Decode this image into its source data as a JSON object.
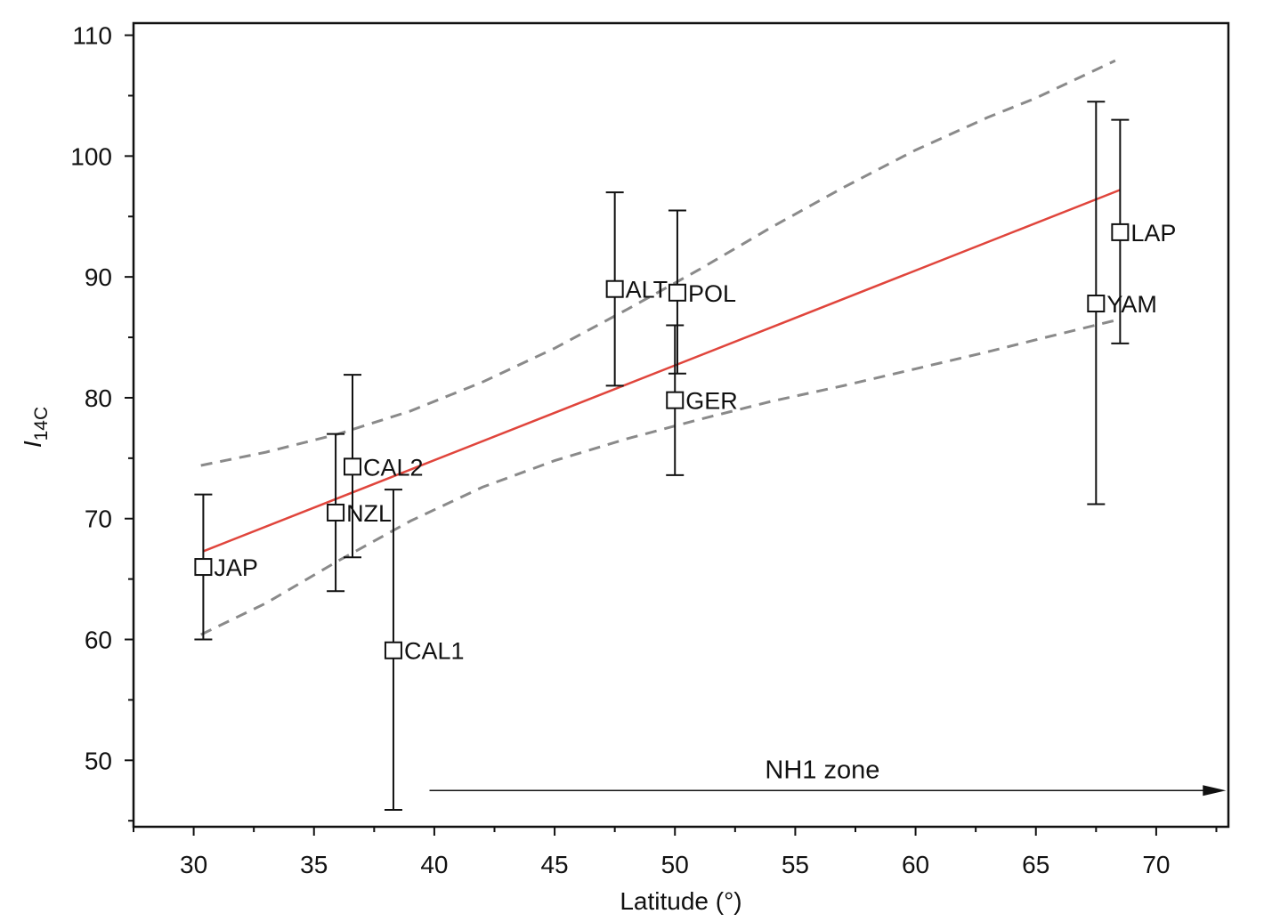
{
  "chart_data": {
    "type": "scatter",
    "title": "",
    "xlabel": "Latitude (°)",
    "ylabel": "I",
    "ylabel_subscript": "14C",
    "xlim": [
      27.5,
      73
    ],
    "ylim": [
      44.5,
      111
    ],
    "xticks": [
      "30",
      "35",
      "40",
      "45",
      "50",
      "55",
      "60",
      "65",
      "70"
    ],
    "yticks": [
      "50",
      "60",
      "70",
      "80",
      "90",
      "100",
      "110"
    ],
    "grid": false,
    "points": [
      {
        "label": "JAP",
        "x": 30.4,
        "y": 66.0,
        "err_low": 60.0,
        "err_high": 72.0
      },
      {
        "label": "NZL",
        "x": 35.9,
        "y": 70.5,
        "err_low": 64.0,
        "err_high": 77.0
      },
      {
        "label": "CAL2",
        "x": 36.6,
        "y": 74.3,
        "err_low": 66.8,
        "err_high": 81.9
      },
      {
        "label": "CAL1",
        "x": 38.3,
        "y": 59.1,
        "err_low": 45.9,
        "err_high": 72.4
      },
      {
        "label": "ALT",
        "x": 47.5,
        "y": 89.0,
        "err_low": 81.0,
        "err_high": 97.0
      },
      {
        "label": "POL",
        "x": 50.1,
        "y": 88.7,
        "err_low": 82.0,
        "err_high": 95.5
      },
      {
        "label": "GER",
        "x": 50.0,
        "y": 79.8,
        "err_low": 73.6,
        "err_high": 86.0
      },
      {
        "label": "YAM",
        "x": 67.5,
        "y": 87.8,
        "err_low": 71.2,
        "err_high": 104.5
      },
      {
        "label": "LAP",
        "x": 68.5,
        "y": 93.7,
        "err_low": 84.5,
        "err_high": 103.0
      }
    ],
    "fit_line": {
      "color": "#e0453c",
      "points": [
        [
          30.4,
          67.3
        ],
        [
          68.5,
          97.2
        ]
      ]
    },
    "confidence_band": {
      "color": "#8a8a8a",
      "upper": [
        [
          30.3,
          74.4
        ],
        [
          33,
          75.5
        ],
        [
          36,
          77.0
        ],
        [
          39,
          78.9
        ],
        [
          42,
          81.3
        ],
        [
          45,
          84.1
        ],
        [
          48,
          87.3
        ],
        [
          51,
          90.6
        ],
        [
          54,
          94.1
        ],
        [
          57,
          97.4
        ],
        [
          60,
          100.5
        ],
        [
          63,
          103.2
        ],
        [
          65,
          104.8
        ],
        [
          68.3,
          107.9
        ]
      ],
      "lower": [
        [
          30.3,
          60.4
        ],
        [
          33,
          63.0
        ],
        [
          36,
          66.5
        ],
        [
          39,
          69.8
        ],
        [
          42,
          72.6
        ],
        [
          45,
          74.8
        ],
        [
          48,
          76.6
        ],
        [
          51,
          78.2
        ],
        [
          54,
          79.7
        ],
        [
          57,
          81.0
        ],
        [
          60,
          82.4
        ],
        [
          63,
          83.8
        ],
        [
          65,
          84.8
        ],
        [
          68.3,
          86.4
        ]
      ]
    },
    "annotations": [
      {
        "text": "NH1 zone",
        "arrow_from_x": 39.8,
        "arrow_to_x": 72.9,
        "arrow_y": 47.5
      }
    ]
  }
}
